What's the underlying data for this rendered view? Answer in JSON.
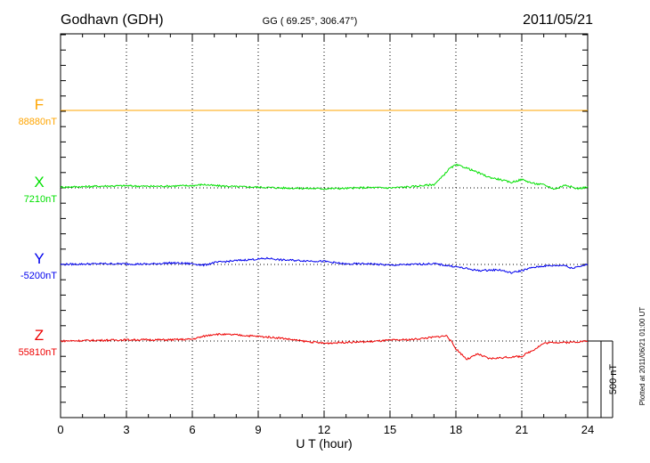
{
  "header": {
    "station": "Godhavn (GDH)",
    "coords": "GG ( 69.25°, 306.47°)",
    "date": "2011/05/21"
  },
  "footer": {
    "plotted": "Plotted at 2011/06/21 01:00 UT",
    "scale_label": "500 nT"
  },
  "chart_data": {
    "type": "line",
    "xlabel": "U T (hour)",
    "xlim": [
      0,
      24
    ],
    "xticks": [
      "0",
      "3",
      "6",
      "9",
      "12",
      "15",
      "18",
      "21",
      "24"
    ],
    "grid": true,
    "scale_nT": 500,
    "series": [
      {
        "name": "F",
        "baseline_label": "88880nT",
        "baseline_nT": 88880,
        "color": "#ffa500",
        "points": [
          [
            0,
            0
          ],
          [
            24,
            0
          ]
        ]
      },
      {
        "name": "X",
        "baseline_label": "7210nT",
        "baseline_nT": 7210,
        "color": "#00e000",
        "points": [
          [
            0,
            5
          ],
          [
            1,
            8
          ],
          [
            2,
            12
          ],
          [
            3,
            14
          ],
          [
            4,
            10
          ],
          [
            5,
            12
          ],
          [
            6,
            15
          ],
          [
            6.5,
            22
          ],
          [
            7,
            15
          ],
          [
            8,
            8
          ],
          [
            9,
            5
          ],
          [
            10,
            0
          ],
          [
            11,
            -3
          ],
          [
            12,
            -5
          ],
          [
            13,
            -3
          ],
          [
            14,
            2
          ],
          [
            15,
            0
          ],
          [
            16,
            8
          ],
          [
            17,
            22
          ],
          [
            17.3,
            60
          ],
          [
            17.7,
            125
          ],
          [
            18,
            150
          ],
          [
            18.4,
            135
          ],
          [
            19,
            100
          ],
          [
            19.5,
            70
          ],
          [
            20,
            55
          ],
          [
            20.5,
            35
          ],
          [
            21,
            55
          ],
          [
            21.5,
            30
          ],
          [
            22,
            20
          ],
          [
            22.5,
            -8
          ],
          [
            23,
            20
          ],
          [
            23.5,
            -5
          ],
          [
            24,
            5
          ]
        ]
      },
      {
        "name": "Y",
        "baseline_label": "-5200nT",
        "baseline_nT": -5200,
        "color": "#0000ee",
        "points": [
          [
            0,
            0
          ],
          [
            2,
            5
          ],
          [
            4,
            2
          ],
          [
            5,
            10
          ],
          [
            6,
            5
          ],
          [
            6.5,
            -5
          ],
          [
            7,
            12
          ],
          [
            8,
            25
          ],
          [
            9,
            35
          ],
          [
            9.5,
            40
          ],
          [
            10,
            30
          ],
          [
            11,
            25
          ],
          [
            12,
            20
          ],
          [
            13,
            2
          ],
          [
            14,
            5
          ],
          [
            15,
            -5
          ],
          [
            16,
            0
          ],
          [
            17,
            5
          ],
          [
            18,
            -15
          ],
          [
            19,
            -40
          ],
          [
            20,
            -35
          ],
          [
            20.5,
            -55
          ],
          [
            21,
            -40
          ],
          [
            21.5,
            -20
          ],
          [
            22,
            -10
          ],
          [
            23,
            -5
          ],
          [
            23.2,
            -25
          ],
          [
            24,
            0
          ]
        ]
      },
      {
        "name": "Z",
        "baseline_label": "55810nT",
        "baseline_nT": 55810,
        "color": "#ee0000",
        "points": [
          [
            0,
            0
          ],
          [
            3,
            8
          ],
          [
            5,
            8
          ],
          [
            6,
            12
          ],
          [
            6.5,
            30
          ],
          [
            7,
            45
          ],
          [
            8,
            40
          ],
          [
            9,
            30
          ],
          [
            10,
            20
          ],
          [
            11,
            0
          ],
          [
            12,
            -15
          ],
          [
            13,
            -8
          ],
          [
            14,
            -5
          ],
          [
            15,
            5
          ],
          [
            16,
            10
          ],
          [
            17,
            25
          ],
          [
            17.6,
            35
          ],
          [
            18,
            -50
          ],
          [
            18.5,
            -120
          ],
          [
            19,
            -85
          ],
          [
            19.5,
            -115
          ],
          [
            20,
            -110
          ],
          [
            21,
            -100
          ],
          [
            21.5,
            -60
          ],
          [
            22,
            -15
          ],
          [
            22.5,
            -8
          ],
          [
            23,
            -10
          ],
          [
            24,
            0
          ]
        ]
      }
    ]
  }
}
